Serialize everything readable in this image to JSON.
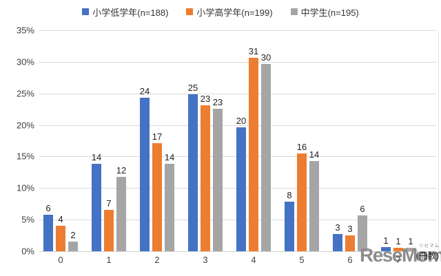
{
  "chart_data": {
    "type": "bar",
    "title": "",
    "categories": [
      "0",
      "1",
      "2",
      "3",
      "4",
      "5",
      "6",
      "7"
    ],
    "series": [
      {
        "name": "小学低学年(n=188)",
        "color": "#4472C4",
        "values": [
          5.8,
          13.8,
          24.3,
          24.9,
          19.6,
          7.9,
          2.7,
          0.7
        ],
        "labels": [
          "6",
          "14",
          "24",
          "25",
          "20",
          "8",
          "3",
          "1"
        ]
      },
      {
        "name": "小学高学年(n=199)",
        "color": "#ED7D31",
        "values": [
          4.0,
          6.5,
          17.1,
          23.1,
          30.6,
          15.5,
          2.5,
          0.6
        ],
        "labels": [
          "4",
          "7",
          "17",
          "23",
          "31",
          "16",
          "3",
          "1"
        ]
      },
      {
        "name": "中学生(n=195)",
        "color": "#A5A5A5",
        "values": [
          1.5,
          11.8,
          13.9,
          22.6,
          29.7,
          14.3,
          5.7,
          0.6
        ],
        "labels": [
          "2",
          "12",
          "14",
          "23",
          "30",
          "14",
          "6",
          "1"
        ]
      }
    ],
    "y_axis": {
      "min": 0,
      "max": 35,
      "step": 5,
      "tick_suffix": "%"
    },
    "x_unit_label": "(冊数)",
    "legend_position": "top",
    "grid": "horizontal",
    "gridline_color": "#D9D9D9"
  },
  "watermark": {
    "logo": "ReseMom",
    "ruby": "リセマム"
  }
}
